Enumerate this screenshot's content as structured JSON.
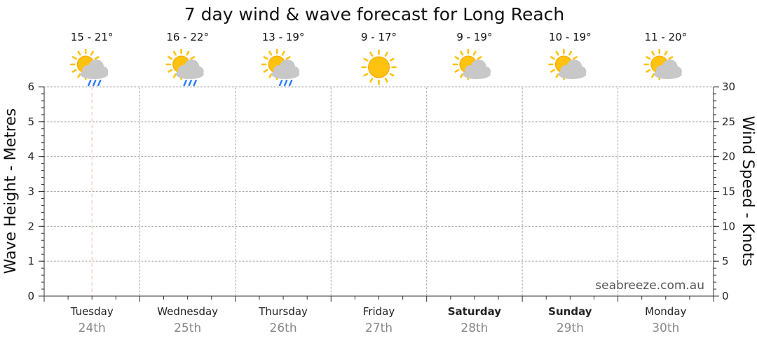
{
  "chart_data": {
    "type": "line",
    "title": "7 day wind & wave forecast for Long Reach",
    "ylabel_left": "Wave Height - Metres",
    "ylabel_right": "Wind Speed - Knots",
    "y_left_lim": [
      0,
      6
    ],
    "y_left_ticks": [
      "0",
      "1",
      "2",
      "3",
      "4",
      "5",
      "6"
    ],
    "y_right_lim": [
      0,
      30
    ],
    "y_right_ticks": [
      "0",
      "5",
      "10",
      "15",
      "20",
      "25",
      "30"
    ],
    "grid": true,
    "watermark": "seabreeze.com.au",
    "days": [
      {
        "day": "Tuesday",
        "date": "24th",
        "temp": "15 - 21°",
        "icon": "sun-cloud-rain-icon",
        "bold": false
      },
      {
        "day": "Wednesday",
        "date": "25th",
        "temp": "16 - 22°",
        "icon": "sun-cloud-rain-icon",
        "bold": false
      },
      {
        "day": "Thursday",
        "date": "26th",
        "temp": "13 - 19°",
        "icon": "sun-cloud-rain-icon",
        "bold": false
      },
      {
        "day": "Friday",
        "date": "27th",
        "temp": "9 - 17°",
        "icon": "sun-icon",
        "bold": false
      },
      {
        "day": "Saturday",
        "date": "28th",
        "temp": "9 - 19°",
        "icon": "sun-cloud-icon",
        "bold": true
      },
      {
        "day": "Sunday",
        "date": "29th",
        "temp": "10 - 19°",
        "icon": "sun-cloud-icon",
        "bold": true
      },
      {
        "day": "Monday",
        "date": "30th",
        "temp": "11 - 20°",
        "icon": "sun-cloud-icon",
        "bold": false
      }
    ],
    "current_time_marker": "Tuesday",
    "series": []
  },
  "colors": {
    "sun": "#FFC20E",
    "sun_edge": "#F5A800",
    "cloud": "#C8C8C8",
    "rain": "#2E7CF6",
    "grid": "#999999",
    "marker": "#F4B8A8"
  }
}
